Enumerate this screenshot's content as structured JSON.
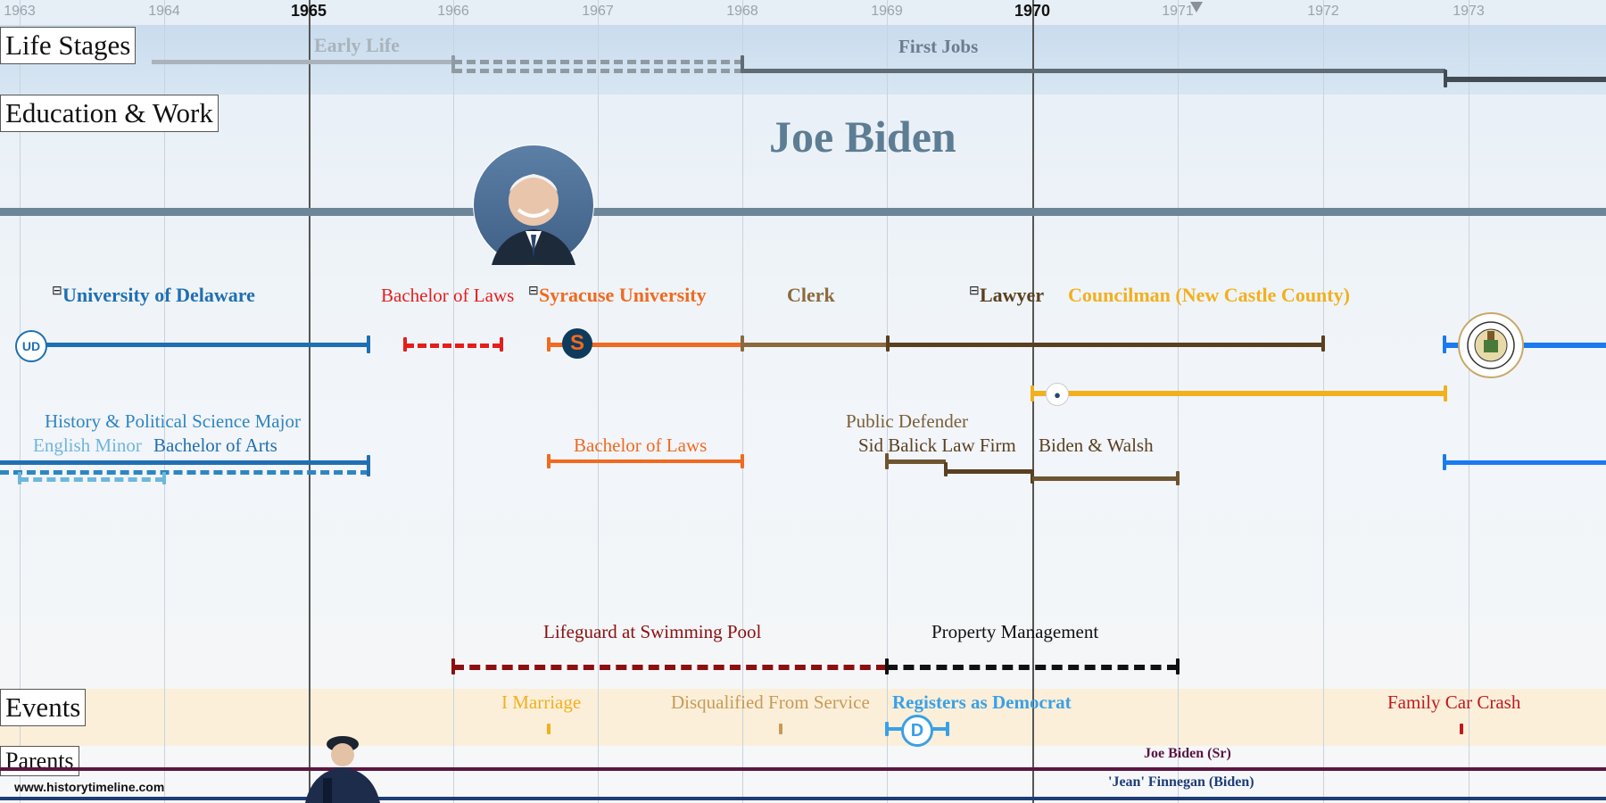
{
  "years": [
    "1963",
    "1964",
    "1965",
    "1966",
    "1967",
    "1968",
    "1969",
    "1970",
    "1971",
    "1972",
    "1973"
  ],
  "sections": {
    "life_stages": "Life Stages",
    "education_work": "Education & Work",
    "events": "Events",
    "parents": "Parents"
  },
  "life_stages": {
    "early_life": "Early Life",
    "first_jobs": "First Jobs"
  },
  "title": "Joe Biden",
  "education": {
    "univ_delaware": "University of Delaware",
    "bachelor_laws_top": "Bachelor of Laws",
    "syracuse": "Syracuse University",
    "clerk": "Clerk",
    "lawyer": "Lawyer",
    "councilman": "Councilman (New Castle County)",
    "history_major": "History & Political Science Major",
    "english_minor": "English Minor",
    "bachelor_arts": "Bachelor of Arts",
    "bachelor_laws": "Bachelor of Laws",
    "public_defender": "Public Defender",
    "sid_balick": "Sid Balick Law Firm",
    "biden_walsh": "Biden & Walsh",
    "lifeguard": "Lifeguard at Swimming Pool",
    "property_mgmt": "Property Management"
  },
  "events": {
    "marriage": "I Marriage",
    "disqualified": "Disqualified From Service",
    "registers": "Registers as Democrat",
    "car_crash": "Family Car Crash"
  },
  "parents": {
    "father": "Joe Biden (Sr)",
    "mother": "'Jean' Finnegan (Biden)"
  },
  "footer": "www.historytimeline.com",
  "colors": {
    "delaware": "#1f6fb2",
    "syracuse": "#f06a1f",
    "clerk": "#8b6a3e",
    "lawyer": "#5a4020",
    "councilman": "#f2b01e",
    "red": "#e51d1d",
    "darkred": "#8b1010",
    "democrat": "#3aa0e6"
  }
}
